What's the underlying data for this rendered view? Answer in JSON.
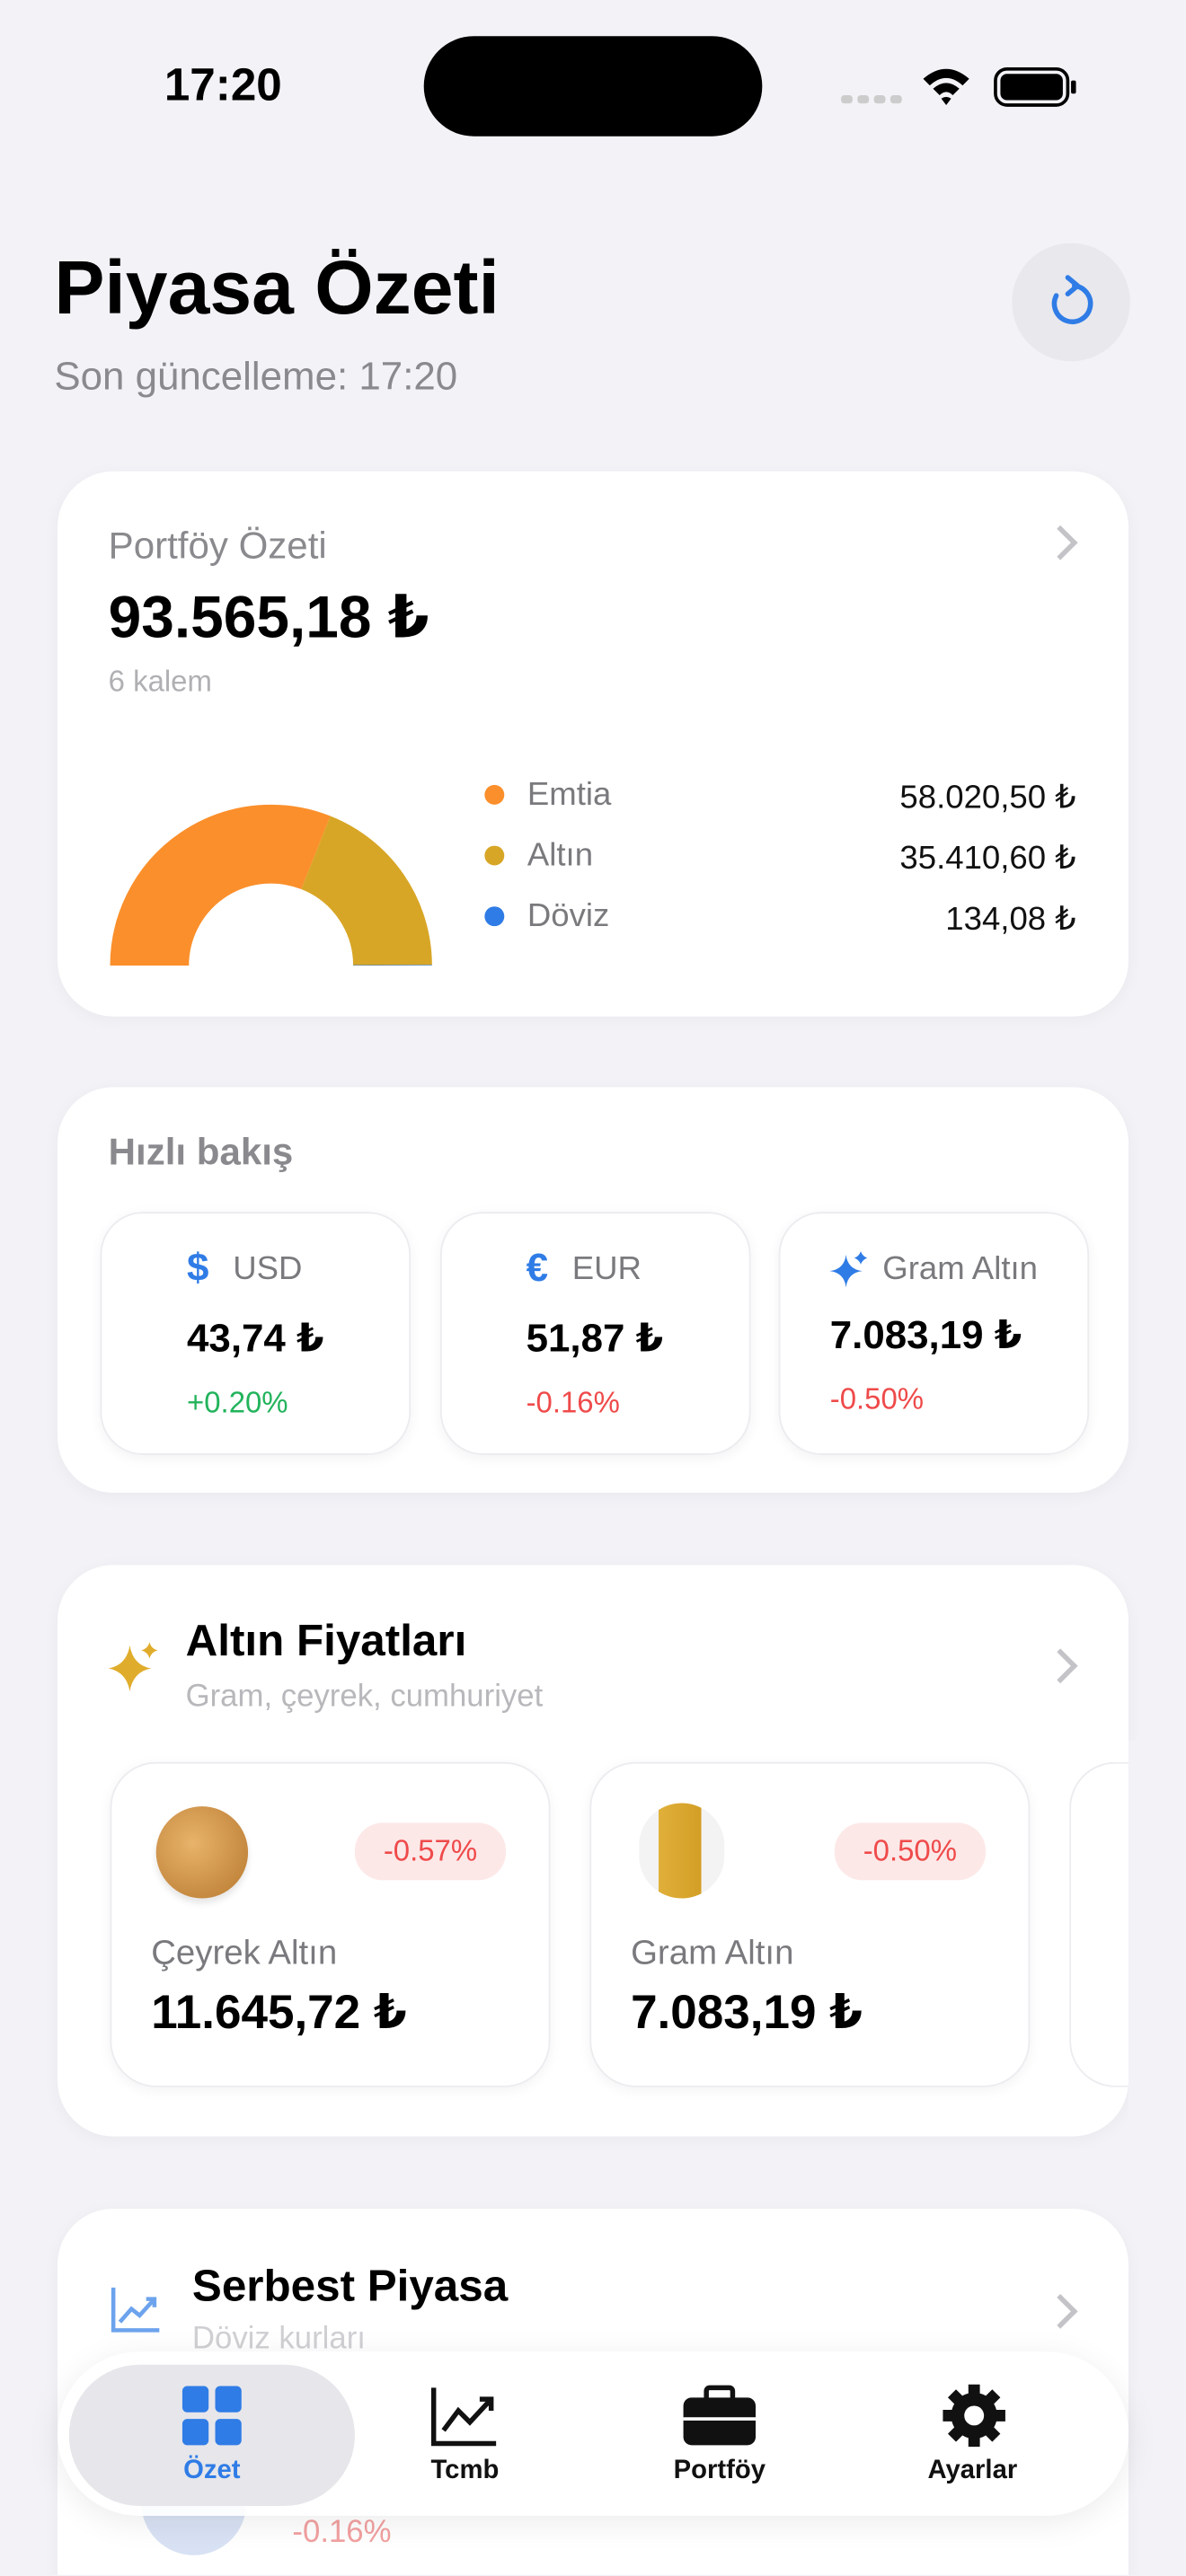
{
  "status": {
    "time": "17:20"
  },
  "header": {
    "title": "Piyasa Özeti",
    "subtitle": "Son güncelleme: 17:20"
  },
  "portfolio": {
    "title": "Portföy Özeti",
    "total": "93.565,18 ₺",
    "count": "6 kalem",
    "items": [
      {
        "name": "Emtia",
        "color": "#fb8f2b",
        "value": 58020.5,
        "label": "58.020,50 ₺"
      },
      {
        "name": "Altın",
        "color": "#d8a626",
        "value": 35410.6,
        "label": "35.410,60 ₺"
      },
      {
        "name": "Döviz",
        "color": "#2f7ce6",
        "value": 134.08,
        "label": "134,08 ₺"
      }
    ]
  },
  "quick": {
    "title": "Hızlı bakış",
    "cards": [
      {
        "symbol": "$",
        "name": "USD",
        "price": "43,74 ₺",
        "change": "+0.20%"
      },
      {
        "symbol": "€",
        "name": "EUR",
        "price": "51,87 ₺",
        "change": "-0.16%"
      },
      {
        "name": "Gram Altın",
        "price": "7.083,19 ₺",
        "change": "-0.50%"
      }
    ]
  },
  "gold": {
    "title": "Altın Fiyatları",
    "subtitle": "Gram, çeyrek, cumhuriyet",
    "cards": [
      {
        "change": "-0.57%",
        "name": "Çeyrek Altın",
        "price": "11.645,72 ₺"
      },
      {
        "change": "-0.50%",
        "name": "Gram Altın",
        "price": "7.083,19 ₺"
      }
    ]
  },
  "market": {
    "title": "Serbest Piyasa",
    "subtitle": "Döviz kurları",
    "first_change": "-0.16%"
  },
  "tabbar": {
    "items": [
      "Özet",
      "Tcmb",
      "Portföy",
      "Ayarlar"
    ]
  }
}
